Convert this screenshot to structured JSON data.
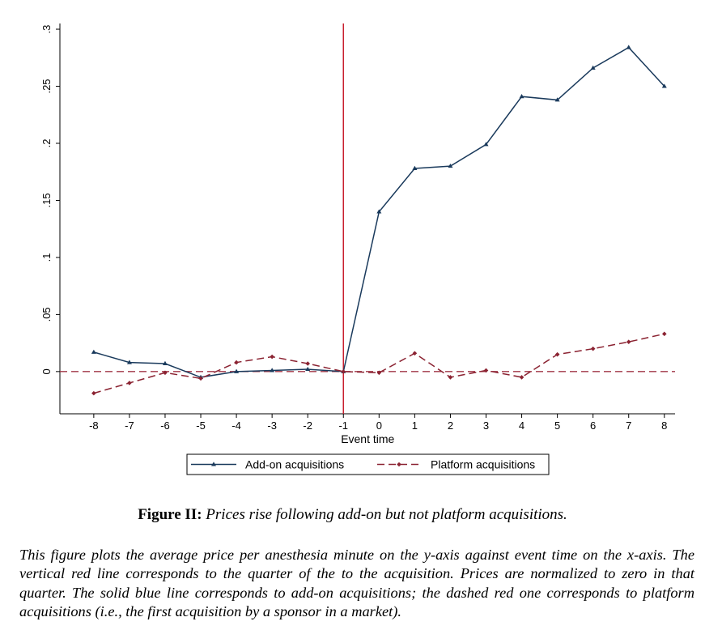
{
  "chart_data": {
    "type": "line",
    "title": "",
    "xlabel": "Event time",
    "ylabel": "",
    "x": [
      -8,
      -7,
      -6,
      -5,
      -4,
      -3,
      -2,
      -1,
      0,
      1,
      2,
      3,
      4,
      5,
      6,
      7,
      8
    ],
    "xticks": [
      "-8",
      "-7",
      "-6",
      "-5",
      "-4",
      "-3",
      "-2",
      "-1",
      "0",
      "1",
      "2",
      "3",
      "4",
      "5",
      "6",
      "7",
      "8"
    ],
    "yticks": [
      "0",
      ".05",
      ".1",
      ".15",
      ".2",
      ".25",
      ".3"
    ],
    "ytick_values": [
      0,
      0.05,
      0.1,
      0.15,
      0.2,
      0.25,
      0.3
    ],
    "xlim": [
      -8.95,
      8.3
    ],
    "ylim": [
      -0.037,
      0.305
    ],
    "grid": false,
    "legend_position": "bottom",
    "reference_lines": {
      "vertical_x": -1,
      "vertical_color": "#c8202f",
      "horizontal_y": 0,
      "horizontal_color": "#a03545"
    },
    "series": [
      {
        "name": "Add-on acquisitions",
        "color": "#1a3a5c",
        "style": "solid",
        "marker": "triangle",
        "values": [
          0.017,
          0.008,
          0.007,
          -0.005,
          0.0,
          0.001,
          0.002,
          0.0,
          0.14,
          0.178,
          0.18,
          0.199,
          0.241,
          0.238,
          0.266,
          0.284,
          0.25
        ]
      },
      {
        "name": "Platform acquisitions",
        "color": "#8b2332",
        "style": "dashed",
        "marker": "diamond",
        "values": [
          -0.019,
          -0.01,
          -0.001,
          -0.006,
          0.008,
          0.013,
          0.007,
          0.0,
          -0.001,
          0.016,
          -0.005,
          0.001,
          -0.005,
          0.015,
          0.02,
          0.026,
          0.033
        ]
      }
    ]
  },
  "caption": {
    "label": "Figure II:",
    "title": "Prices rise following add-on but not platform acquisitions.",
    "body": "This figure plots the average price per anesthesia minute on the y-axis against event time on the x-axis. The vertical red line corresponds to the quarter of the to the acquisition. Prices are normalized to zero in that quarter. The solid blue line corresponds to add-on acquisitions; the dashed red one corresponds to platform acquisitions (i.e., the first acquisition by a sponsor in a market)."
  }
}
